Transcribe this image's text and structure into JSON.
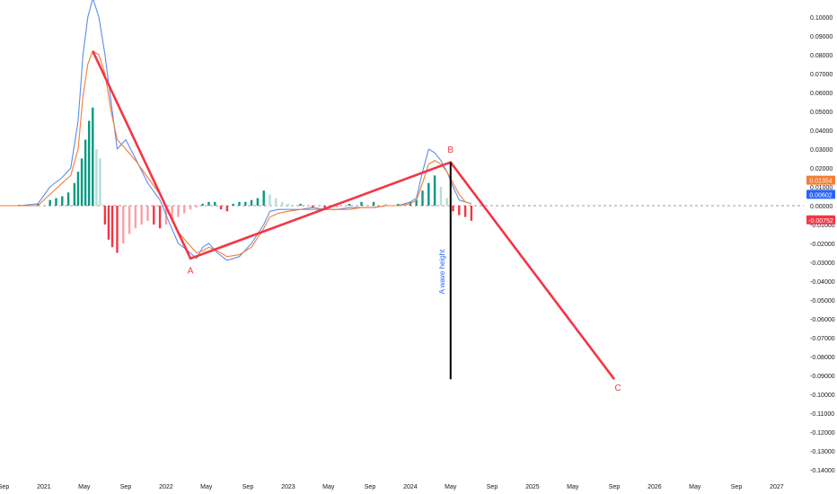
{
  "chart_data": {
    "type": "line",
    "title": "",
    "xlabel": "",
    "ylabel": "",
    "ylim": [
      -0.14,
      0.105
    ],
    "grid": false,
    "x_ticks": [
      "Sep",
      "2021",
      "May",
      "Sep",
      "2022",
      "May",
      "Sep",
      "2023",
      "May",
      "Sep",
      "2024",
      "May",
      "Sep",
      "2025",
      "May",
      "Sep",
      "2026",
      "May",
      "Sep",
      "2027"
    ],
    "x_tick_dates": [
      2020.67,
      2021.0,
      2021.33,
      2021.67,
      2022.0,
      2022.33,
      2022.67,
      2023.0,
      2023.33,
      2023.67,
      2024.0,
      2024.33,
      2024.67,
      2025.0,
      2025.33,
      2025.67,
      2026.0,
      2026.33,
      2026.67,
      2027.0
    ],
    "y_ticks": [
      "0.10000",
      "0.09000",
      "0.08000",
      "0.07000",
      "0.06000",
      "0.05000",
      "0.04000",
      "0.03000",
      "0.02000",
      "0.01000",
      "0.00000",
      "-0.01000",
      "-0.02000",
      "-0.03000",
      "-0.04000",
      "-0.05000",
      "-0.06000",
      "-0.07000",
      "-0.08000",
      "-0.09000",
      "-0.10000",
      "-0.11000",
      "-0.12000",
      "-0.13000",
      "-0.14000"
    ],
    "y_tick_values": [
      0.1,
      0.09,
      0.08,
      0.07,
      0.06,
      0.05,
      0.04,
      0.03,
      0.02,
      0.01,
      0.0,
      -0.01,
      -0.02,
      -0.03,
      -0.04,
      -0.05,
      -0.06,
      -0.07,
      -0.08,
      -0.09,
      -0.1,
      -0.11,
      -0.12,
      -0.13,
      -0.14
    ],
    "price_labels": [
      {
        "text": "0.01354",
        "value": 0.01354,
        "color": "#f57c33"
      },
      {
        "text": "0.00602",
        "value": 0.00602,
        "color": "#2962ff"
      },
      {
        "text": "-0.00752",
        "value": -0.00752,
        "color": "#f23645"
      }
    ],
    "series": [
      {
        "color": "#5b8def",
        "x": [
          2020.6,
          2020.8,
          2020.95,
          2021.05,
          2021.15,
          2021.22,
          2021.28,
          2021.32,
          2021.36,
          2021.4,
          2021.45,
          2021.5,
          2021.55,
          2021.6,
          2021.67,
          2021.75,
          2021.85,
          2021.95,
          2022.02,
          2022.1,
          2022.18,
          2022.25,
          2022.3,
          2022.35,
          2022.42,
          2022.5,
          2022.6,
          2022.7,
          2022.8,
          2022.85,
          2022.92,
          2023.0,
          2023.1,
          2023.2,
          2023.3,
          2023.4,
          2023.5,
          2023.6,
          2023.7,
          2023.8,
          2023.9,
          2024.0,
          2024.05,
          2024.1,
          2024.15,
          2024.2,
          2024.25,
          2024.3,
          2024.35,
          2024.4,
          2024.45,
          2024.5
        ],
        "values": [
          0.0,
          0.0,
          0.001,
          0.01,
          0.015,
          0.02,
          0.045,
          0.08,
          0.1,
          0.11,
          0.1,
          0.08,
          0.055,
          0.03,
          0.035,
          0.025,
          0.012,
          0.003,
          -0.008,
          -0.02,
          -0.024,
          -0.028,
          -0.022,
          -0.02,
          -0.025,
          -0.029,
          -0.027,
          -0.02,
          -0.01,
          -0.003,
          -0.002,
          -0.002,
          -0.002,
          -0.001,
          -0.002,
          -0.002,
          -0.001,
          -0.001,
          -0.001,
          0.0,
          0.0,
          0.002,
          0.004,
          0.018,
          0.03,
          0.028,
          0.024,
          0.018,
          0.01,
          0.003,
          0.002,
          0.001
        ]
      },
      {
        "color": "#f57c33",
        "x": [
          2020.6,
          2020.8,
          2020.95,
          2021.05,
          2021.15,
          2021.22,
          2021.28,
          2021.32,
          2021.36,
          2021.4,
          2021.45,
          2021.5,
          2021.55,
          2021.6,
          2021.67,
          2021.75,
          2021.85,
          2021.95,
          2022.02,
          2022.1,
          2022.18,
          2022.25,
          2022.3,
          2022.35,
          2022.42,
          2022.5,
          2022.6,
          2022.7,
          2022.8,
          2022.85,
          2022.92,
          2023.0,
          2023.1,
          2023.2,
          2023.3,
          2023.4,
          2023.5,
          2023.6,
          2023.7,
          2023.8,
          2023.9,
          2024.0,
          2024.05,
          2024.1,
          2024.15,
          2024.2,
          2024.25,
          2024.3,
          2024.35,
          2024.4,
          2024.45,
          2024.5
        ],
        "values": [
          0.0,
          0.0,
          0.0,
          0.006,
          0.012,
          0.016,
          0.03,
          0.058,
          0.075,
          0.082,
          0.08,
          0.07,
          0.05,
          0.035,
          0.03,
          0.024,
          0.015,
          0.006,
          -0.004,
          -0.014,
          -0.02,
          -0.025,
          -0.024,
          -0.022,
          -0.024,
          -0.027,
          -0.026,
          -0.022,
          -0.012,
          -0.006,
          -0.004,
          -0.003,
          -0.002,
          -0.002,
          -0.002,
          -0.002,
          -0.002,
          -0.001,
          -0.001,
          0.0,
          0.0,
          0.001,
          0.003,
          0.012,
          0.022,
          0.024,
          0.022,
          0.018,
          0.012,
          0.006,
          0.002,
          0.001
        ]
      }
    ],
    "histogram": {
      "x": [
        2020.6,
        2020.8,
        2020.95,
        2021.05,
        2021.1,
        2021.15,
        2021.2,
        2021.25,
        2021.28,
        2021.31,
        2021.34,
        2021.37,
        2021.4,
        2021.43,
        2021.46,
        2021.5,
        2021.53,
        2021.56,
        2021.6,
        2021.65,
        2021.7,
        2021.75,
        2021.8,
        2021.85,
        2021.9,
        2021.95,
        2022.0,
        2022.05,
        2022.1,
        2022.15,
        2022.2,
        2022.25,
        2022.3,
        2022.35,
        2022.4,
        2022.45,
        2022.5,
        2022.55,
        2022.6,
        2022.65,
        2022.7,
        2022.75,
        2022.8,
        2022.85,
        2022.9,
        2022.95,
        2023.0,
        2023.1,
        2023.2,
        2023.3,
        2023.4,
        2023.5,
        2023.6,
        2023.7,
        2023.8,
        2023.9,
        2024.0,
        2024.05,
        2024.1,
        2024.15,
        2024.2,
        2024.25,
        2024.3,
        2024.35,
        2024.4,
        2024.45,
        2024.5
      ],
      "values": [
        0.0005,
        0.0005,
        0.001,
        0.003,
        0.004,
        0.005,
        0.007,
        0.012,
        0.018,
        0.025,
        0.035,
        0.045,
        0.052,
        0.03,
        0.025,
        -0.01,
        -0.018,
        -0.022,
        -0.025,
        -0.02,
        -0.015,
        -0.012,
        -0.01,
        -0.008,
        -0.01,
        -0.012,
        -0.01,
        -0.008,
        -0.006,
        -0.004,
        -0.002,
        -0.001,
        0.001,
        0.002,
        0.002,
        -0.002,
        -0.003,
        0.001,
        0.002,
        0.002,
        0.003,
        0.004,
        0.008,
        0.006,
        0.004,
        0.002,
        0.001,
        0.001,
        -0.001,
        -0.002,
        -0.001,
        0.001,
        0.002,
        0.002,
        0.001,
        0.001,
        0.002,
        0.003,
        0.008,
        0.012,
        0.016,
        0.01,
        0.004,
        -0.003,
        -0.005,
        -0.006,
        -0.008
      ],
      "pos_color": "#089981",
      "pos_light_color": "#b2dfdb",
      "neg_color": "#f23645",
      "neg_light_color": "#faa1a4"
    },
    "annotations": {
      "wave_lines": [
        {
          "x": [
            2021.4,
            2022.2,
            2024.33,
            2025.67
          ],
          "values": [
            0.082,
            -0.028,
            0.023,
            -0.092
          ],
          "color": "#f23645"
        }
      ],
      "vertical_line": {
        "x": 2024.33,
        "values": [
          0.023,
          -0.092
        ],
        "color": "#000000"
      },
      "labels": [
        {
          "text": "A",
          "x": 2022.2,
          "value": -0.036,
          "color": "#f23645"
        },
        {
          "text": "B",
          "x": 2024.33,
          "value": 0.028,
          "color": "#f23645"
        },
        {
          "text": "C",
          "x": 2025.7,
          "value": -0.098,
          "color": "#f23645"
        },
        {
          "text": "A wave height",
          "x": 2024.28,
          "value": -0.035,
          "color": "#2962ff",
          "rotated": true
        }
      ]
    },
    "zero_line_color": "#9e9e9e"
  }
}
